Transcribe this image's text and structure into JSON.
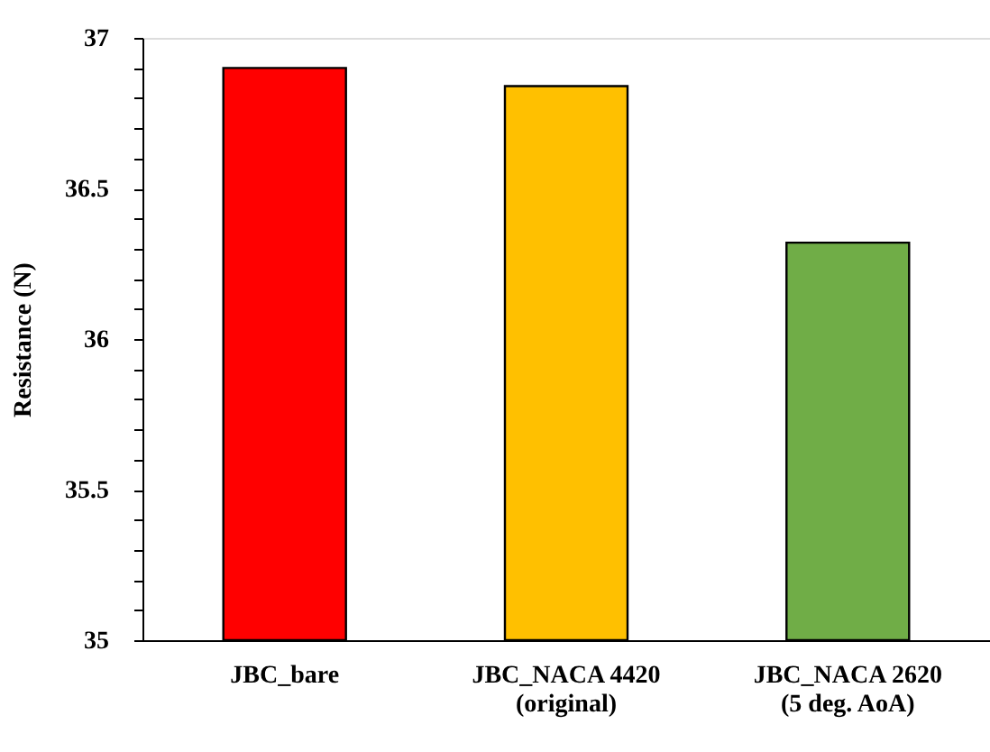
{
  "chart_data": {
    "type": "bar",
    "ylabel": "Resistance (N)",
    "categories": [
      "JBC_bare",
      "JBC_NACA 4420\n(original)",
      "JBC_NACA 2620\n(5 deg. AoA)"
    ],
    "values": [
      36.9,
      36.84,
      36.32
    ],
    "colors": [
      "#ff0000",
      "#ffc000",
      "#70ad47"
    ],
    "ylim": [
      35,
      37
    ],
    "yticks": [
      35,
      {
        "value": 35.1,
        "label": null
      },
      {
        "value": 35.2,
        "label": null
      },
      {
        "value": 35.3,
        "label": null
      },
      {
        "value": 35.4,
        "label": null
      },
      35.5,
      {
        "value": 35.6,
        "label": null
      },
      {
        "value": 35.7,
        "label": null
      },
      {
        "value": 35.8,
        "label": null
      },
      {
        "value": 35.9,
        "label": null
      },
      36,
      {
        "value": 36.1,
        "label": null
      },
      {
        "value": 36.2,
        "label": null
      },
      {
        "value": 36.3,
        "label": null
      },
      {
        "value": 36.4,
        "label": null
      },
      36.5,
      {
        "value": 36.6,
        "label": null
      },
      {
        "value": 36.7,
        "label": null
      },
      {
        "value": 36.8,
        "label": null
      },
      {
        "value": 36.9,
        "label": null
      },
      37
    ],
    "grid": false
  }
}
